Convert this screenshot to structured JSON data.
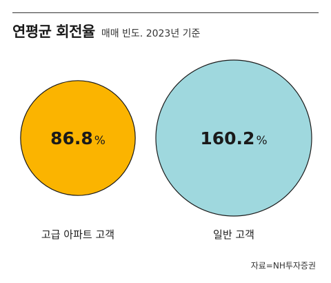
{
  "title": "연평균 회전율",
  "subtitle": "매매 빈도. 2023년 기준",
  "source": "자료=NH투자증권",
  "chart_data": {
    "type": "bubble",
    "unit": "%",
    "categories": [
      "고급 아파트 고객",
      "일반 고객"
    ],
    "values": [
      86.8,
      160.2
    ],
    "colors": [
      "#fbb400",
      "#9fd8de"
    ],
    "outline_color": "#1a1a1a"
  }
}
